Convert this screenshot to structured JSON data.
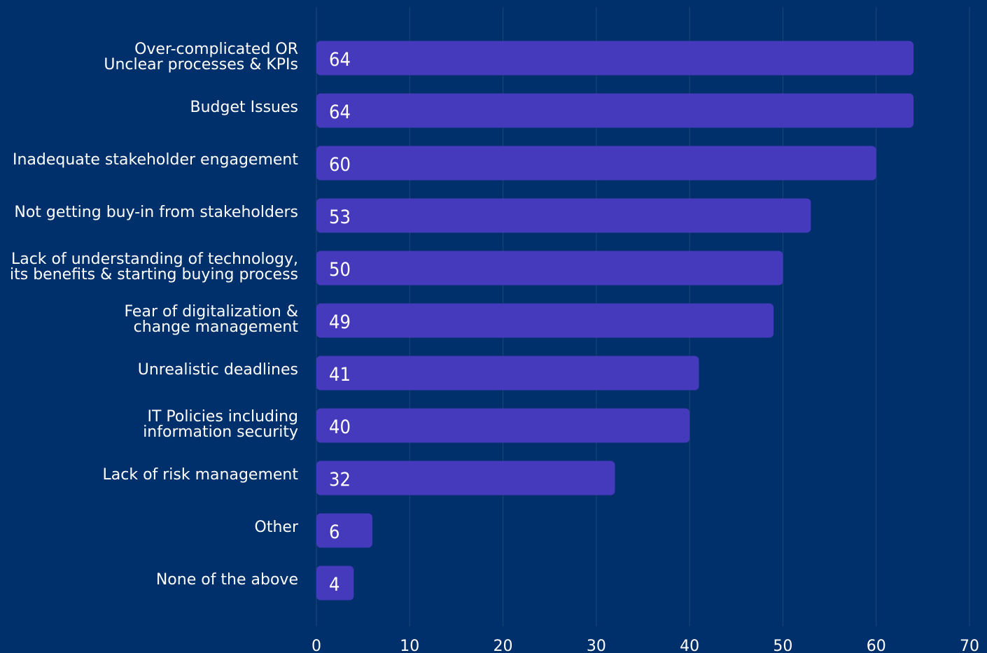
{
  "chart_data": {
    "type": "bar",
    "orientation": "horizontal",
    "categories": [
      [
        "Over-complicated OR",
        "Unclear processes & KPIs"
      ],
      [
        "Budget Issues"
      ],
      [
        "Inadequate stakeholder engagement"
      ],
      [
        "Not getting buy-in from stakeholders"
      ],
      [
        "Lack of understanding of technology,",
        "its benefits & starting buying process"
      ],
      [
        "Fear of digitalization &",
        "change management"
      ],
      [
        "Unrealistic deadlines"
      ],
      [
        "IT Policies including",
        "information security"
      ],
      [
        "Lack of risk management"
      ],
      [
        "Other"
      ],
      [
        "None of the above"
      ]
    ],
    "values": [
      64,
      64,
      60,
      53,
      50,
      49,
      41,
      40,
      32,
      6,
      4
    ],
    "xlim": [
      0,
      70
    ],
    "xticks": [
      0,
      10,
      20,
      30,
      40,
      50,
      60,
      70
    ],
    "grid": true,
    "title": "",
    "xlabel": "",
    "ylabel": "",
    "colors": {
      "background": "#00306b",
      "bar": "#453abb",
      "gridline": "#1d4778",
      "text": "#ffffff"
    }
  }
}
